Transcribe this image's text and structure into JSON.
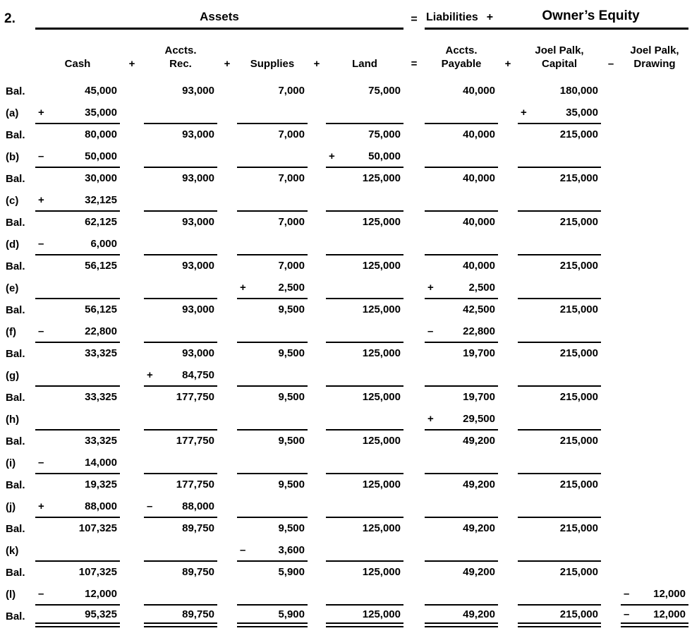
{
  "title": {
    "item_number": "2.",
    "assets_label": "Assets",
    "equals_sign": "=",
    "liabilities_label": "Liabilities",
    "plus_sign": "+",
    "owners_equity_label": "Owner’s Equity"
  },
  "columns": {
    "cash": "Cash",
    "sep1": "+",
    "ar_line1": "Accts.",
    "ar_line2": "Rec.",
    "sep2": "+",
    "supplies": "Supplies",
    "sep3": "+",
    "land": "Land",
    "sep4": "=",
    "ap_line1": "Accts.",
    "ap_line2": "Payable",
    "sep5": "+",
    "cap_line1": "Joel Palk,",
    "cap_line2": "Capital",
    "sep6": "–",
    "draw_line1": "Joel Palk,",
    "draw_line2": "Drawing"
  },
  "rows": [
    {
      "label": "Bal.",
      "cash": "45,000",
      "ar": "93,000",
      "sup": "7,000",
      "land": "75,000",
      "ap": "40,000",
      "cap": "180,000"
    },
    {
      "label": "(a)",
      "cash_sign": "+",
      "cash": "35,000",
      "cap_sign": "+",
      "cap": "35,000",
      "u": [
        "cash",
        "ar",
        "sup",
        "land",
        "ap",
        "cap"
      ]
    },
    {
      "label": "Bal.",
      "cash": "80,000",
      "ar": "93,000",
      "sup": "7,000",
      "land": "75,000",
      "ap": "40,000",
      "cap": "215,000"
    },
    {
      "label": "(b)",
      "cash_sign": "–",
      "cash": "50,000",
      "land_sign": "+",
      "land": "50,000",
      "u": [
        "cash",
        "ar",
        "sup",
        "land",
        "ap",
        "cap"
      ]
    },
    {
      "label": "Bal.",
      "cash": "30,000",
      "ar": "93,000",
      "sup": "7,000",
      "land": "125,000",
      "ap": "40,000",
      "cap": "215,000"
    },
    {
      "label": "(c)",
      "cash_sign": "+",
      "cash": "32,125",
      "u": [
        "cash",
        "ar",
        "sup",
        "land",
        "ap",
        "cap"
      ]
    },
    {
      "label": "Bal.",
      "cash": "62,125",
      "ar": "93,000",
      "sup": "7,000",
      "land": "125,000",
      "ap": "40,000",
      "cap": "215,000"
    },
    {
      "label": "(d)",
      "cash_sign": "–",
      "cash": "6,000",
      "u": [
        "cash",
        "ar",
        "sup",
        "land",
        "ap",
        "cap"
      ]
    },
    {
      "label": "Bal.",
      "cash": "56,125",
      "ar": "93,000",
      "sup": "7,000",
      "land": "125,000",
      "ap": "40,000",
      "cap": "215,000"
    },
    {
      "label": "(e)",
      "sup_sign": "+",
      "sup": "2,500",
      "ap_sign": "+",
      "ap": "2,500",
      "u": [
        "cash",
        "ar",
        "sup",
        "land",
        "ap",
        "cap"
      ]
    },
    {
      "label": "Bal.",
      "cash": "56,125",
      "ar": "93,000",
      "sup": "9,500",
      "land": "125,000",
      "ap": "42,500",
      "cap": "215,000"
    },
    {
      "label": "(f)",
      "cash_sign": "–",
      "cash": "22,800",
      "ap_sign": "–",
      "ap": "22,800",
      "u": [
        "cash",
        "ar",
        "sup",
        "land",
        "ap",
        "cap"
      ]
    },
    {
      "label": "Bal.",
      "cash": "33,325",
      "ar": "93,000",
      "sup": "9,500",
      "land": "125,000",
      "ap": "19,700",
      "cap": "215,000"
    },
    {
      "label": "(g)",
      "ar_sign": "+",
      "ar": "84,750",
      "u": [
        "cash",
        "ar",
        "sup",
        "land",
        "ap",
        "cap"
      ]
    },
    {
      "label": "Bal.",
      "cash": "33,325",
      "ar": "177,750",
      "sup": "9,500",
      "land": "125,000",
      "ap": "19,700",
      "cap": "215,000"
    },
    {
      "label": "(h)",
      "ap_sign": "+",
      "ap": "29,500",
      "u": [
        "cash",
        "ar",
        "sup",
        "land",
        "ap",
        "cap"
      ]
    },
    {
      "label": "Bal.",
      "cash": "33,325",
      "ar": "177,750",
      "sup": "9,500",
      "land": "125,000",
      "ap": "49,200",
      "cap": "215,000"
    },
    {
      "label": "(i)",
      "cash_sign": "–",
      "cash": "14,000",
      "u": [
        "cash",
        "ar",
        "sup",
        "land",
        "ap",
        "cap"
      ]
    },
    {
      "label": "Bal.",
      "cash": "19,325",
      "ar": "177,750",
      "sup": "9,500",
      "land": "125,000",
      "ap": "49,200",
      "cap": "215,000"
    },
    {
      "label": "(j)",
      "cash_sign": "+",
      "cash": "88,000",
      "ar_sign": "–",
      "ar": "88,000",
      "u": [
        "cash",
        "ar",
        "sup",
        "land",
        "ap",
        "cap"
      ]
    },
    {
      "label": "Bal.",
      "cash": "107,325",
      "ar": "89,750",
      "sup": "9,500",
      "land": "125,000",
      "ap": "49,200",
      "cap": "215,000"
    },
    {
      "label": "(k)",
      "sup_sign": "–",
      "sup": "3,600",
      "u": [
        "cash",
        "ar",
        "sup",
        "land",
        "ap",
        "cap"
      ]
    },
    {
      "label": "Bal.",
      "cash": "107,325",
      "ar": "89,750",
      "sup": "5,900",
      "land": "125,000",
      "ap": "49,200",
      "cap": "215,000"
    },
    {
      "label": "(l)",
      "cash_sign": "–",
      "cash": "12,000",
      "draw_sign": "–",
      "draw": "12,000",
      "u": [
        "cash",
        "ar",
        "sup",
        "land",
        "ap",
        "cap",
        "draw"
      ]
    },
    {
      "label": "Bal.",
      "cash": "95,325",
      "ar": "89,750",
      "sup": "5,900",
      "land": "125,000",
      "ap": "49,200",
      "cap": "215,000",
      "draw_sign": "–",
      "draw": "12,000",
      "uu": true
    }
  ]
}
